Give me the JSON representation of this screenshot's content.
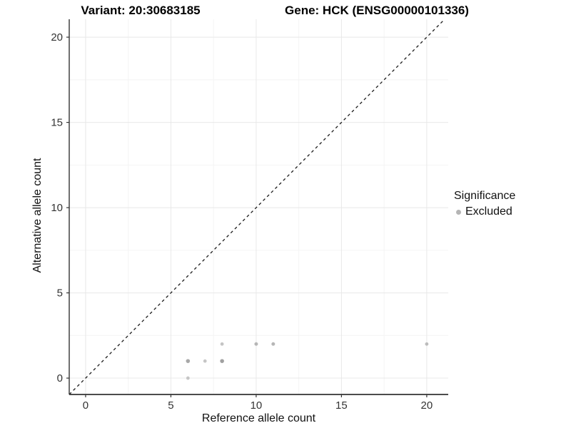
{
  "titles": {
    "variant": "Variant: 20:30683185",
    "gene": "Gene: HCK (ENSG00000101336)"
  },
  "chart_data": {
    "type": "scatter",
    "title_left": "Variant: 20:30683185",
    "title_right": "Gene: HCK (ENSG00000101336)",
    "xlabel": "Reference allele count",
    "ylabel": "Alternative allele count",
    "xlim": [
      -0.96,
      21.26
    ],
    "ylim": [
      -0.96,
      21.05
    ],
    "xticks": [
      0,
      5,
      10,
      15,
      20
    ],
    "yticks": [
      0,
      5,
      10,
      15,
      20
    ],
    "minor_xticks": [
      2.5,
      7.5,
      12.5,
      17.5
    ],
    "minor_yticks": [
      2.5,
      7.5,
      12.5,
      17.5
    ],
    "grid": "on",
    "identity_line": {
      "x1": -0.96,
      "y1": -0.96,
      "x2": 21.05,
      "y2": 21.05,
      "style": "dashed"
    },
    "series": [
      {
        "name": "Excluded",
        "color": "#bebebe",
        "points": [
          {
            "x": 6,
            "y": 0,
            "shade": "#c6c6c6",
            "r": 2.4
          },
          {
            "x": 6,
            "y": 1,
            "shade": "#a8a8a8",
            "r": 2.8
          },
          {
            "x": 7,
            "y": 1,
            "shade": "#c6c6c6",
            "r": 2.4
          },
          {
            "x": 8,
            "y": 1,
            "shade": "#a0a0a0",
            "r": 2.8
          },
          {
            "x": 8,
            "y": 2,
            "shade": "#c4c4c4",
            "r": 2.4
          },
          {
            "x": 10,
            "y": 2,
            "shade": "#b6b6b6",
            "r": 2.5
          },
          {
            "x": 11,
            "y": 2,
            "shade": "#b6b6b6",
            "r": 2.5
          },
          {
            "x": 20,
            "y": 2,
            "shade": "#bcbcbc",
            "r": 2.4
          }
        ]
      }
    ],
    "legend": {
      "position": "right",
      "title": "Significance",
      "items": [
        {
          "label": "Excluded",
          "color": "#b5b5b5"
        }
      ]
    }
  },
  "colors": {
    "background": "#ffffff",
    "grid_major": "#e8e8e8",
    "grid_minor": "#f4f4f4",
    "axis_line": "#333333",
    "tick_label": "#333333",
    "identity_line": "#1a1a1a"
  }
}
